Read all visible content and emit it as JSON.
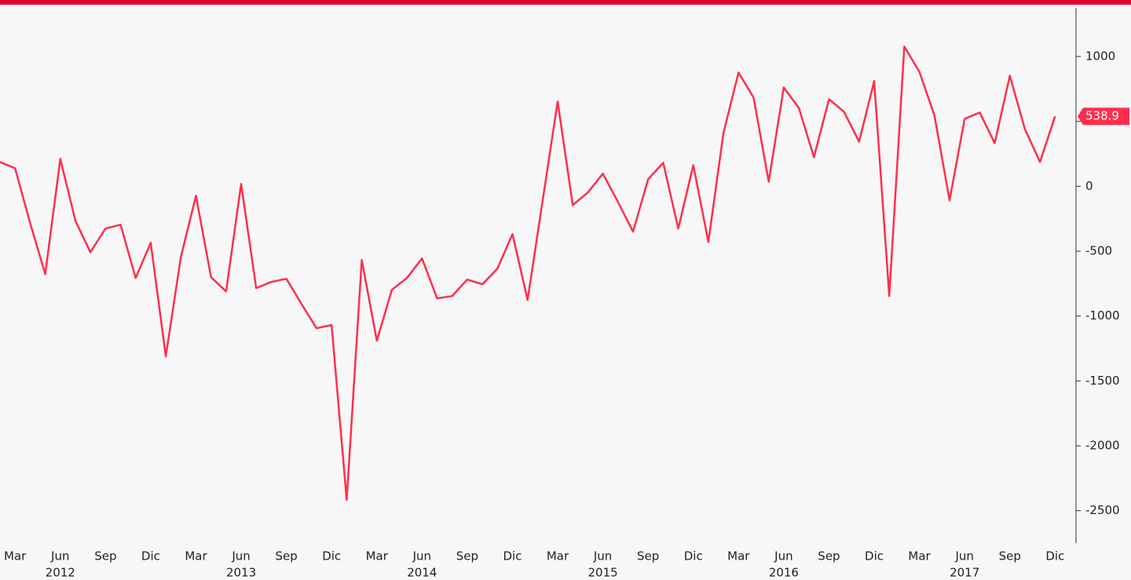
{
  "chart_data": {
    "type": "line",
    "categories": [
      null,
      "Mar",
      null,
      null,
      "Jun",
      null,
      null,
      "Sep",
      null,
      null,
      "Dic",
      null,
      null,
      "Mar",
      null,
      null,
      "Jun",
      null,
      null,
      "Sep",
      null,
      null,
      "Dic",
      null,
      null,
      "Mar",
      null,
      null,
      "Jun",
      null,
      null,
      "Sep",
      null,
      null,
      "Dic",
      null,
      null,
      "Mar",
      null,
      null,
      "Jun",
      null,
      null,
      "Sep",
      null,
      null,
      "Dic",
      null,
      null,
      "Mar",
      null,
      null,
      "Jun",
      null,
      null,
      "Sep",
      null,
      null,
      "Dic",
      null,
      null,
      "Mar",
      null,
      null,
      "Jun",
      null,
      null,
      "Sep",
      null,
      null,
      "Dic"
    ],
    "years": [
      "2012",
      "2013",
      "2014",
      "2015",
      "2016",
      "2017"
    ],
    "series": [
      {
        "color": "#ff2e4c",
        "values": [
          187,
          139,
          -284,
          -677,
          211,
          -266,
          -508,
          -326,
          -296,
          -707,
          -435,
          -1311,
          -544,
          -73,
          -701,
          -810,
          18,
          -785,
          -737,
          -713,
          -906,
          -1094,
          -1069,
          -2417,
          -568,
          -1190,
          -798,
          -707,
          -556,
          -864,
          -846,
          -719,
          -755,
          -634,
          -369,
          -876,
          -115,
          653,
          -145,
          -48,
          97,
          -121,
          -350,
          54,
          181,
          -326,
          163,
          -429,
          411,
          876,
          683,
          36,
          761,
          604,
          224,
          671,
          574,
          344,
          810,
          -846,
          1076,
          882,
          544,
          -109,
          520,
          568,
          332,
          852,
          441,
          187,
          538.9
        ]
      }
    ],
    "ylim": [
      -2750,
      1375
    ],
    "yticks": [
      1000,
      500,
      0,
      -500,
      -1000,
      -1500,
      -2000,
      -2500
    ]
  }
}
